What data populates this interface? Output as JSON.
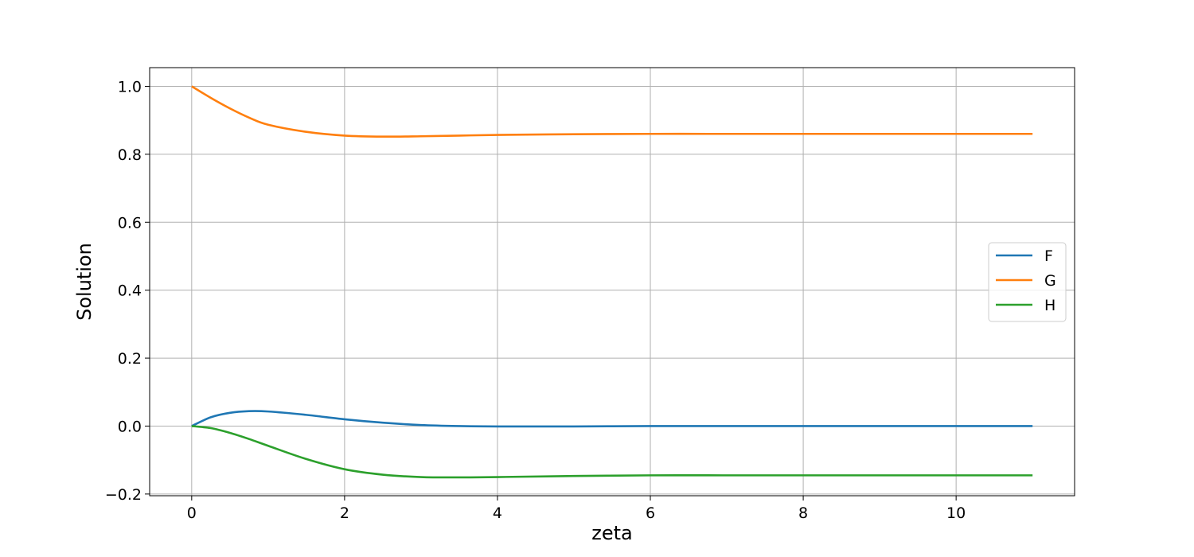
{
  "chart_data": {
    "type": "line",
    "title": "",
    "xlabel": "zeta",
    "ylabel": "Solution",
    "xlim": [
      -0.55,
      11.55
    ],
    "ylim": [
      -0.205,
      1.055
    ],
    "xticks": [
      0,
      2,
      4,
      6,
      8,
      10
    ],
    "xtick_labels": [
      "0",
      "2",
      "4",
      "6",
      "8",
      "10"
    ],
    "yticks": [
      -0.2,
      0.0,
      0.2,
      0.4,
      0.6,
      0.8,
      1.0
    ],
    "ytick_labels": [
      "−0.2",
      "0.0",
      "0.2",
      "0.4",
      "0.6",
      "0.8",
      "1.0"
    ],
    "grid": true,
    "legend_position": "center-right",
    "x": [
      0,
      0.25,
      0.5,
      0.75,
      1.0,
      1.5,
      2.0,
      2.5,
      3.0,
      3.5,
      4.0,
      5.0,
      6.0,
      7.0,
      8.0,
      9.0,
      10.0,
      11.0
    ],
    "series": [
      {
        "name": "F",
        "color": "#1f77b4",
        "values": [
          0.0,
          0.026,
          0.039,
          0.044,
          0.043,
          0.033,
          0.02,
          0.01,
          0.003,
          0.0,
          -0.001,
          -0.001,
          0.0,
          0.0,
          0.0,
          0.0,
          0.0,
          0.0
        ]
      },
      {
        "name": "G",
        "color": "#ff7f0e",
        "values": [
          1.0,
          0.966,
          0.935,
          0.908,
          0.887,
          0.866,
          0.855,
          0.852,
          0.853,
          0.855,
          0.857,
          0.859,
          0.86,
          0.86,
          0.86,
          0.86,
          0.86,
          0.86
        ]
      },
      {
        "name": "H",
        "color": "#2ca02c",
        "values": [
          0.0,
          -0.006,
          -0.02,
          -0.038,
          -0.058,
          -0.097,
          -0.127,
          -0.143,
          -0.15,
          -0.151,
          -0.15,
          -0.147,
          -0.145,
          -0.145,
          -0.145,
          -0.145,
          -0.145,
          -0.145
        ]
      }
    ]
  }
}
